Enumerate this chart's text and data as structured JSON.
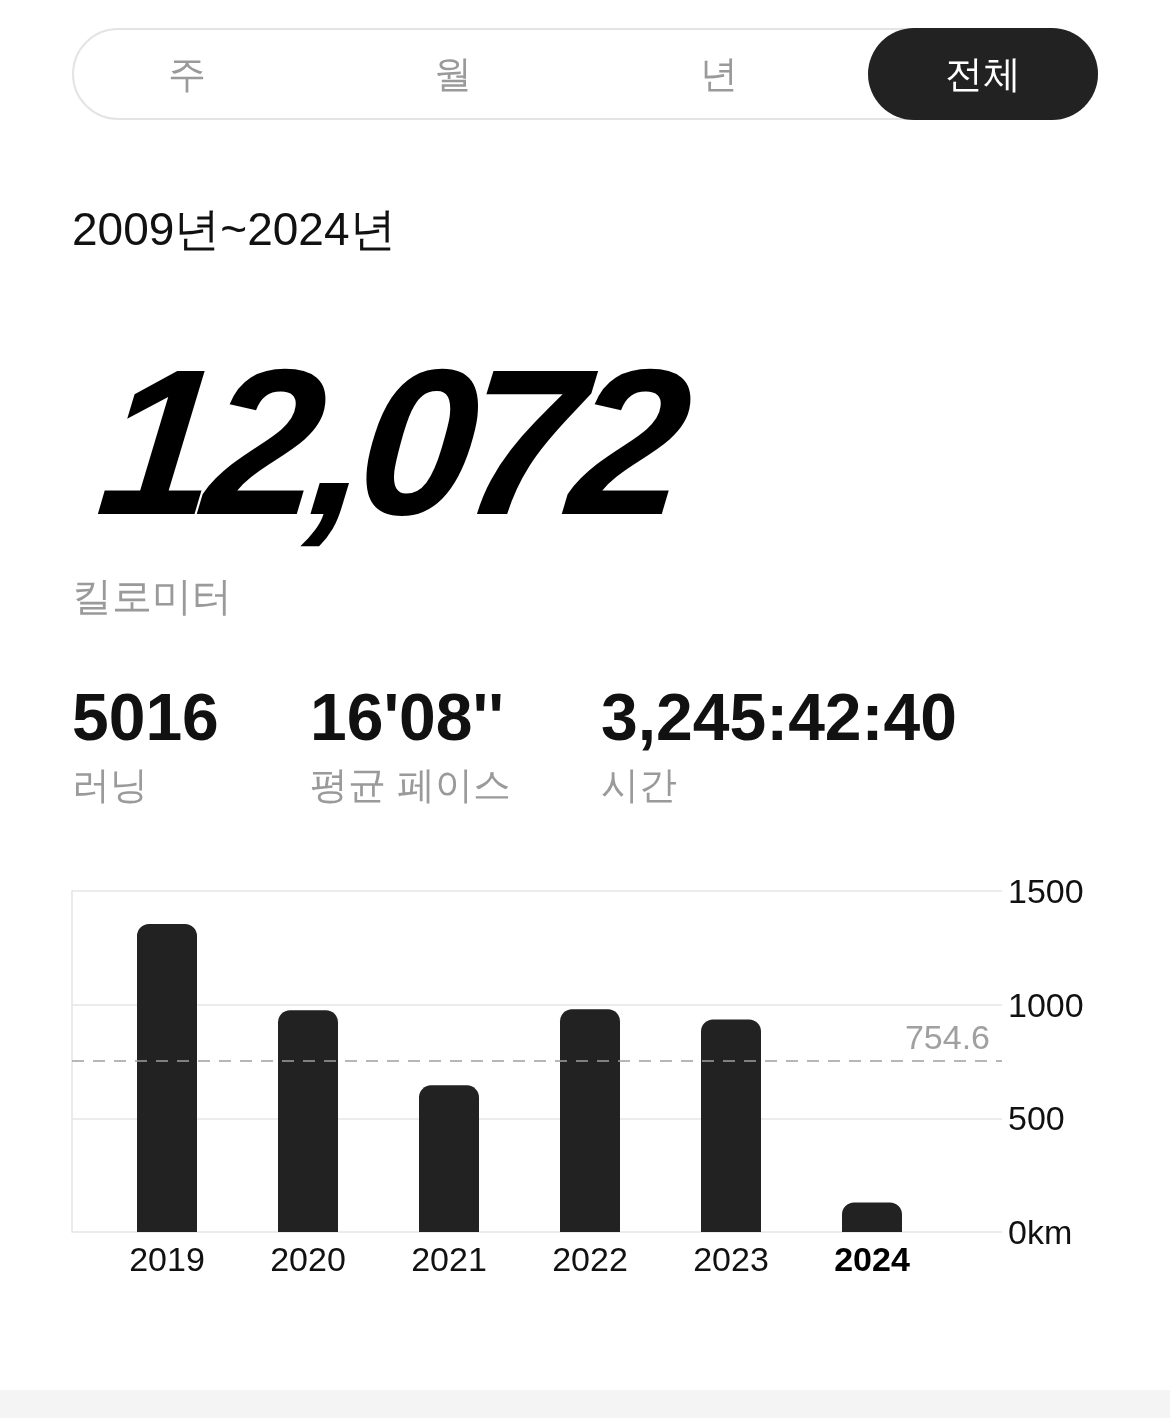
{
  "chart_data": {
    "type": "bar",
    "categories": [
      "2019",
      "2020",
      "2021",
      "2022",
      "2023",
      "2024"
    ],
    "values": [
      1355,
      975,
      645,
      980,
      935,
      130
    ],
    "color": "#222222",
    "ylim": [
      0,
      1500
    ],
    "yticks": [
      {
        "value": 0,
        "label": "0km"
      },
      500,
      1000,
      1500
    ],
    "grid": "y",
    "ref_lines": [
      {
        "axis": "y",
        "value": 754.6,
        "label": "754.6",
        "color": "#a0a0a0",
        "line_style": "dashed"
      }
    ],
    "annotations": [
      "주",
      "월",
      "년",
      "전체",
      "2009년~2024년",
      "12,072",
      "킬로미터",
      "5016",
      "러닝",
      "16'08''",
      "평균 페이스",
      "3,245:42:40",
      "시간"
    ]
  }
}
